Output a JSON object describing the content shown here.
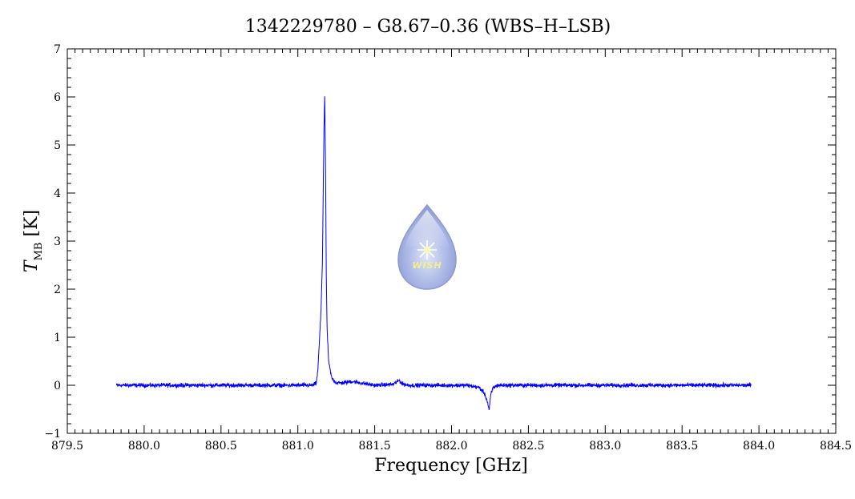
{
  "chart_data": {
    "type": "line",
    "title": "1342229780 – G8.67–0.36 (WBS–H–LSB)",
    "xlabel": "Frequency [GHz]",
    "ylabel_symbol": "T",
    "ylabel_subscript": "MB",
    "ylabel_unit": "[K]",
    "xlim": [
      879.5,
      884.5
    ],
    "ylim": [
      -1,
      7
    ],
    "x_ticks": [
      879.5,
      880.0,
      880.5,
      881.0,
      881.5,
      882.0,
      882.5,
      883.0,
      883.5,
      884.0,
      884.5
    ],
    "x_tick_labels": [
      "879.5",
      "880.0",
      "880.5",
      "881.0",
      "881.5",
      "882.0",
      "882.5",
      "883.0",
      "883.5",
      "884.0",
      "884.5"
    ],
    "y_ticks": [
      -1,
      0,
      1,
      2,
      3,
      4,
      5,
      6,
      7
    ],
    "y_tick_labels": [
      "−1",
      "0",
      "1",
      "2",
      "3",
      "4",
      "5",
      "6",
      "7"
    ],
    "grid": false,
    "series": [
      {
        "color": "#0000ff",
        "x": [
          879.82,
          880.0,
          880.3,
          880.6,
          880.9,
          881.05,
          881.1,
          881.12,
          881.13,
          881.14,
          881.15,
          881.16,
          881.165,
          881.17,
          881.175,
          881.18,
          881.185,
          881.19,
          881.2,
          881.22,
          881.25,
          881.3,
          881.35,
          881.5,
          881.62,
          881.66,
          881.68,
          881.72,
          881.9,
          882.1,
          882.18,
          882.21,
          882.23,
          882.245,
          882.255,
          882.27,
          882.3,
          882.5,
          882.8,
          883.1,
          883.4,
          883.7,
          883.95
        ],
        "y": [
          0.0,
          0.0,
          0.0,
          0.0,
          0.0,
          0.0,
          0.0,
          0.05,
          0.3,
          0.9,
          1.5,
          2.6,
          4.0,
          5.3,
          6.05,
          4.6,
          2.3,
          1.2,
          0.5,
          0.15,
          0.05,
          0.05,
          0.08,
          0.0,
          0.02,
          0.1,
          0.03,
          0.0,
          0.0,
          0.0,
          -0.05,
          -0.15,
          -0.3,
          -0.52,
          -0.2,
          -0.05,
          0.0,
          0.0,
          0.0,
          0.0,
          0.0,
          0.0,
          0.0
        ],
        "noise_rms": 0.03
      }
    ],
    "watermark_logo_text": "WISH"
  }
}
